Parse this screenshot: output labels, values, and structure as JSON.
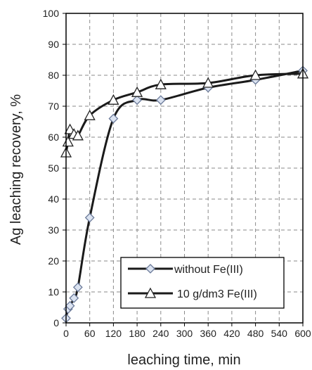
{
  "chart_data": {
    "type": "line",
    "title": "",
    "xlabel": "leaching time, min",
    "ylabel": "Ag leaching recovery, %",
    "xlim": [
      0,
      600
    ],
    "ylim": [
      0,
      100
    ],
    "x_ticks": [
      0,
      60,
      120,
      180,
      240,
      300,
      360,
      420,
      480,
      540,
      600
    ],
    "y_ticks": [
      0,
      10,
      20,
      30,
      40,
      50,
      60,
      70,
      80,
      90,
      100
    ],
    "grid": "dashed",
    "legend_position": "bottom-right",
    "series": [
      {
        "name": "without Fe(III)",
        "marker": "diamond",
        "x": [
          0,
          5,
          10,
          20,
          30,
          60,
          120,
          180,
          240,
          360,
          480,
          600
        ],
        "y": [
          1.5,
          4.5,
          5.5,
          8.0,
          11.5,
          34.0,
          66.0,
          72.0,
          72.0,
          76.0,
          78.5,
          81.5
        ]
      },
      {
        "name": "10 g/dm3 Fe(III)",
        "marker": "triangle",
        "x": [
          0,
          5,
          10,
          20,
          30,
          60,
          120,
          180,
          240,
          360,
          480,
          600
        ],
        "y": [
          55.0,
          58.5,
          62.5,
          61.0,
          60.5,
          67.0,
          72.0,
          74.5,
          77.0,
          77.5,
          80.0,
          80.5
        ]
      }
    ]
  }
}
